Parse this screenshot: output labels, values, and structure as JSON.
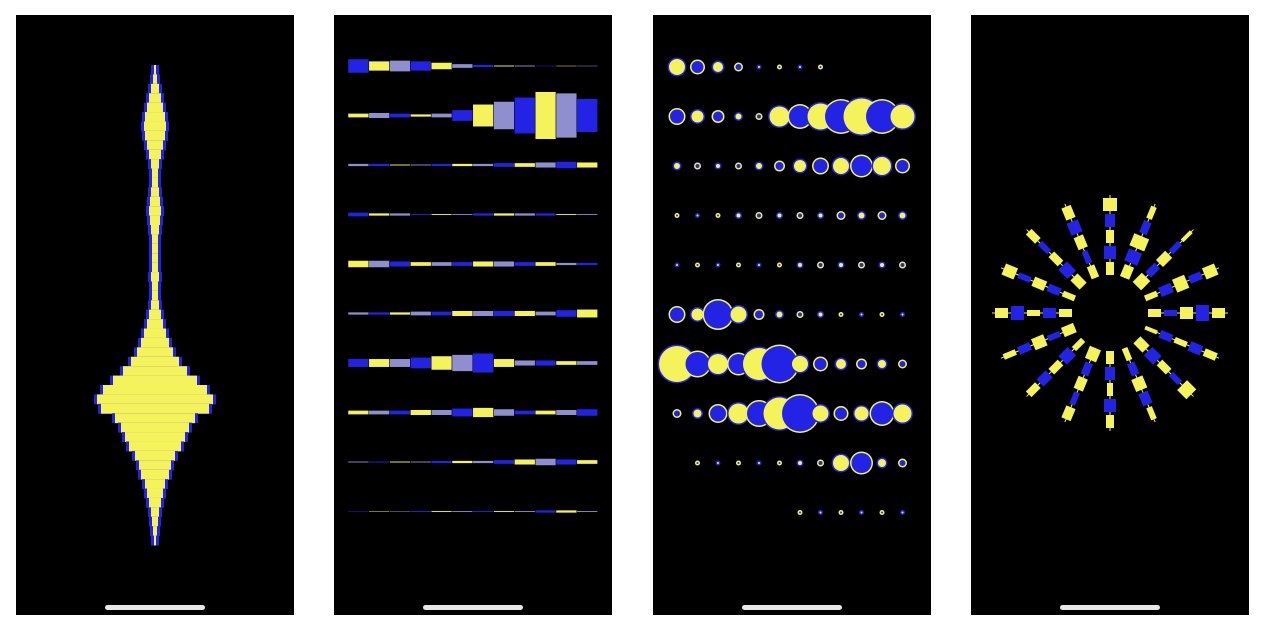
{
  "colors": {
    "background": "#000000",
    "primary": "#f5f35c",
    "secondary": "#2323e6",
    "mix": "#8f8fcf",
    "home_indicator": "#e8e8e8"
  },
  "panels": [
    {
      "name": "vertical-mirrored-histogram",
      "rows": [
        [
          0,
          1
        ],
        [
          1,
          2
        ],
        [
          2,
          4
        ],
        [
          3,
          6
        ],
        [
          4,
          8
        ],
        [
          5,
          10
        ],
        [
          6,
          11
        ],
        [
          7,
          10
        ],
        [
          8,
          8
        ],
        [
          9,
          6
        ],
        [
          10,
          4
        ],
        [
          11,
          3
        ],
        [
          12,
          3
        ],
        [
          13,
          4
        ],
        [
          14,
          5
        ],
        [
          15,
          6
        ],
        [
          16,
          5
        ],
        [
          17,
          4
        ],
        [
          18,
          3
        ],
        [
          19,
          3
        ],
        [
          20,
          3
        ],
        [
          21,
          3
        ],
        [
          22,
          4
        ],
        [
          23,
          3
        ],
        [
          24,
          3
        ],
        [
          25,
          4
        ],
        [
          26,
          6
        ],
        [
          27,
          8
        ],
        [
          28,
          11
        ],
        [
          29,
          14
        ],
        [
          30,
          18
        ],
        [
          31,
          24
        ],
        [
          32,
          32
        ],
        [
          33,
          42
        ],
        [
          34,
          52
        ],
        [
          35,
          58
        ],
        [
          36,
          54
        ],
        [
          37,
          40
        ],
        [
          38,
          34
        ],
        [
          39,
          30
        ],
        [
          40,
          26
        ],
        [
          41,
          20
        ],
        [
          42,
          16
        ],
        [
          43,
          14
        ],
        [
          44,
          10
        ],
        [
          45,
          8
        ],
        [
          46,
          6
        ],
        [
          47,
          4
        ],
        [
          48,
          3
        ],
        [
          49,
          2
        ],
        [
          50,
          1
        ]
      ]
    },
    {
      "name": "horizontal-strip-rows",
      "rows": [
        [
          10,
          7,
          8,
          7,
          5,
          3,
          2,
          1,
          1,
          0,
          0,
          0
        ],
        [
          3,
          4,
          3,
          2,
          3,
          8,
          16,
          20,
          26,
          34,
          32,
          24
        ],
        [
          2,
          2,
          1,
          1,
          2,
          2,
          2,
          3,
          3,
          4,
          5,
          4
        ],
        [
          3,
          2,
          2,
          1,
          1,
          1,
          2,
          2,
          2,
          2,
          1,
          1
        ],
        [
          5,
          5,
          4,
          3,
          3,
          3,
          4,
          4,
          3,
          3,
          2,
          2
        ],
        [
          2,
          2,
          2,
          3,
          3,
          4,
          4,
          4,
          4,
          3,
          5,
          6
        ],
        [
          6,
          6,
          6,
          8,
          10,
          12,
          14,
          6,
          4,
          4,
          3,
          3
        ],
        [
          3,
          3,
          3,
          4,
          4,
          6,
          7,
          5,
          3,
          3,
          4,
          5
        ],
        [
          1,
          1,
          1,
          1,
          2,
          2,
          2,
          3,
          4,
          5,
          4,
          3
        ],
        [
          0,
          0,
          0,
          1,
          1,
          1,
          1,
          1,
          1,
          2,
          2,
          1
        ]
      ]
    },
    {
      "name": "bubble-grid",
      "rows": [
        [
          8,
          6,
          5,
          3,
          1,
          1,
          1,
          1,
          0,
          0,
          0,
          0
        ],
        [
          7,
          6,
          5,
          3,
          2,
          10,
          11,
          13,
          16,
          18,
          16,
          12
        ],
        [
          3,
          2,
          2,
          2,
          3,
          4,
          6,
          7,
          8,
          10,
          9,
          6
        ],
        [
          1,
          1,
          1,
          2,
          2,
          2,
          2,
          2,
          3,
          3,
          3,
          3
        ],
        [
          1,
          1,
          1,
          1,
          1,
          1,
          2,
          2,
          2,
          2,
          2,
          2
        ],
        [
          7,
          6,
          14,
          8,
          4,
          3,
          2,
          2,
          1,
          1,
          1,
          1
        ],
        [
          18,
          12,
          10,
          10,
          16,
          18,
          8,
          6,
          5,
          4,
          4,
          3
        ],
        [
          3,
          4,
          8,
          10,
          12,
          16,
          18,
          8,
          6,
          7,
          11,
          9
        ],
        [
          0,
          1,
          1,
          1,
          1,
          1,
          2,
          2,
          8,
          10,
          4,
          3
        ],
        [
          0,
          0,
          0,
          0,
          0,
          0,
          1,
          1,
          1,
          1,
          1,
          1
        ]
      ]
    },
    {
      "name": "radial-burst",
      "spokes": [
        [
          4,
          6,
          4,
          5,
          7
        ],
        [
          5,
          7,
          8,
          4,
          3
        ],
        [
          6,
          4,
          5,
          3,
          2
        ],
        [
          3,
          5,
          7,
          4,
          6
        ],
        [
          4,
          3,
          6,
          8,
          5
        ],
        [
          2,
          4,
          3,
          5,
          4
        ],
        [
          5,
          6,
          4,
          3,
          7
        ],
        [
          3,
          4,
          6,
          5,
          3
        ],
        [
          4,
          5,
          3,
          6,
          4
        ],
        [
          6,
          4,
          5,
          3,
          5
        ],
        [
          3,
          6,
          4,
          5,
          4
        ],
        [
          5,
          3,
          6,
          4,
          3
        ],
        [
          4,
          5,
          3,
          7,
          5
        ],
        [
          3,
          4,
          5,
          3,
          6
        ],
        [
          5,
          6,
          4,
          3,
          4
        ],
        [
          4,
          3,
          5,
          6,
          5
        ]
      ]
    }
  ]
}
